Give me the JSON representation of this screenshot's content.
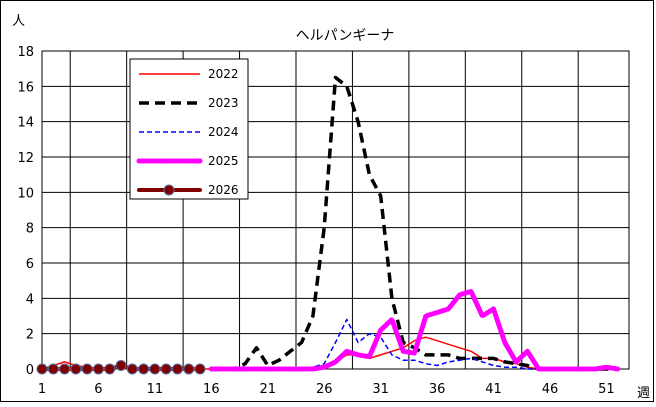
{
  "chart_data": {
    "type": "line",
    "title": "ヘルパンギーナ",
    "ylabel": "人",
    "xlabel": "週",
    "ylim": [
      0,
      18
    ],
    "xlim": [
      1,
      53
    ],
    "yticks": [
      0,
      2,
      4,
      6,
      8,
      10,
      12,
      14,
      16,
      18
    ],
    "xticks": [
      1,
      6,
      11,
      16,
      21,
      26,
      31,
      36,
      41,
      46,
      51
    ],
    "grid": true,
    "legend_position": "upper-left",
    "series": [
      {
        "name": "2022",
        "color": "#ff0000",
        "style": "solid-thin",
        "x": [
          1,
          2,
          3,
          4,
          5,
          6,
          7,
          8,
          9,
          10,
          11,
          12,
          13,
          14,
          15,
          16,
          17,
          18,
          19,
          20,
          21,
          22,
          23,
          24,
          25,
          26,
          27,
          28,
          29,
          30,
          31,
          32,
          33,
          34,
          35,
          36,
          37,
          38,
          39,
          40,
          41,
          42,
          43,
          44,
          45,
          46,
          47,
          48,
          49,
          50,
          51,
          52
        ],
        "values": [
          0,
          0.2,
          0.4,
          0.2,
          0.1,
          0,
          0,
          0.1,
          0,
          0,
          0,
          0,
          0,
          0,
          0,
          0,
          0,
          0,
          0,
          0,
          0,
          0,
          0,
          0,
          0.1,
          0.2,
          0.4,
          0.8,
          0.8,
          0.6,
          0.8,
          1.0,
          1.2,
          1.6,
          1.8,
          1.6,
          1.4,
          1.2,
          1.0,
          0.6,
          0.6,
          0.4,
          0.3,
          0.1,
          0,
          0,
          0,
          0,
          0,
          0,
          0,
          0
        ]
      },
      {
        "name": "2023",
        "color": "#000000",
        "style": "dashed-thick",
        "x": [
          16,
          17,
          18,
          19,
          20,
          21,
          22,
          23,
          24,
          25,
          26,
          27,
          28,
          29,
          30,
          31,
          32,
          33,
          34,
          35,
          36,
          37,
          38,
          39,
          40,
          41,
          42,
          43,
          44,
          45,
          46,
          47,
          48,
          49,
          50,
          51,
          52
        ],
        "values": [
          0,
          0,
          0,
          0.3,
          1.2,
          0.2,
          0.5,
          1.0,
          1.5,
          3.0,
          8.0,
          16.5,
          16.0,
          14.0,
          11.0,
          9.8,
          4.0,
          1.5,
          1.2,
          0.8,
          0.8,
          0.8,
          0.6,
          0.6,
          0.6,
          0.6,
          0.4,
          0.3,
          0.2,
          0,
          0,
          0,
          0,
          0,
          0,
          0,
          0
        ]
      },
      {
        "name": "2024",
        "color": "#0000ff",
        "style": "dashed-thin",
        "x": [
          16,
          17,
          18,
          19,
          20,
          21,
          22,
          23,
          24,
          25,
          26,
          27,
          28,
          29,
          30,
          31,
          32,
          33,
          34,
          35,
          36,
          37,
          38,
          39,
          40,
          41,
          42,
          43,
          44,
          45,
          46,
          47,
          48,
          49,
          50,
          51,
          52
        ],
        "values": [
          0,
          0,
          0,
          0,
          0,
          0,
          0,
          0,
          0.1,
          0.1,
          0.3,
          1.5,
          2.8,
          1.5,
          2.0,
          1.8,
          0.8,
          0.5,
          0.5,
          0.3,
          0.2,
          0.4,
          0.5,
          0.6,
          0.4,
          0.2,
          0.1,
          0.1,
          0,
          0,
          0,
          0,
          0,
          0,
          0,
          0,
          0
        ]
      },
      {
        "name": "2025",
        "color": "#ff00ff",
        "style": "dotted-thick",
        "x": [
          16,
          17,
          18,
          19,
          20,
          21,
          22,
          23,
          24,
          25,
          26,
          27,
          28,
          29,
          30,
          31,
          32,
          33,
          34,
          35,
          36,
          37,
          38,
          39,
          40,
          41,
          42,
          43,
          44,
          45,
          46,
          47,
          48,
          49,
          50,
          51,
          52
        ],
        "values": [
          0,
          0,
          0,
          0,
          0,
          0,
          0,
          0,
          0,
          0,
          0.1,
          0.4,
          1.0,
          0.8,
          0.7,
          2.2,
          2.8,
          1.0,
          0.9,
          3.0,
          3.2,
          3.4,
          4.2,
          4.4,
          3.0,
          3.4,
          1.5,
          0.4,
          1.0,
          0,
          0,
          0,
          0,
          0,
          0,
          0.1,
          0
        ]
      },
      {
        "name": "2026",
        "color": "#800000",
        "style": "solid-markers",
        "x": [
          1,
          2,
          3,
          4,
          5,
          6,
          7,
          8,
          9,
          10,
          11,
          12,
          13,
          14,
          15
        ],
        "values": [
          0,
          0,
          0,
          0,
          0,
          0,
          0,
          0.2,
          0,
          0,
          0,
          0,
          0,
          0,
          0
        ]
      }
    ]
  }
}
